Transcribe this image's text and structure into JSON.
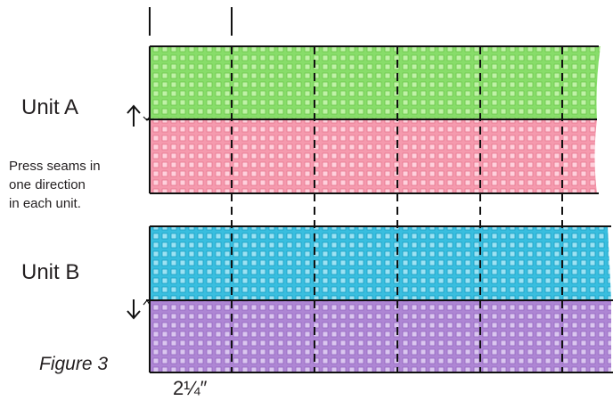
{
  "labels": {
    "unit_a": "Unit A",
    "unit_b": "Unit B",
    "note_line1": "Press seams in",
    "note_line2": "one direction",
    "note_line3": "in each unit.",
    "figure": "Figure 3",
    "measure": "2¼″"
  },
  "units": [
    {
      "name": "Unit A",
      "strips": [
        {
          "fabric": "green",
          "color": "#88dd6a",
          "squares": "#bff2a6"
        },
        {
          "fabric": "pink",
          "color": "#f59aae",
          "squares": "#ffd0dc"
        }
      ],
      "press_direction": "up"
    },
    {
      "name": "Unit B",
      "strips": [
        {
          "fabric": "blue",
          "color": "#39bedf",
          "squares": "#9be2f3"
        },
        {
          "fabric": "purple",
          "color": "#ae86d4",
          "squares": "#dac6ef"
        }
      ],
      "press_direction": "down"
    }
  ],
  "colors": {
    "outline": "#111111",
    "cut_line": "#111111"
  }
}
